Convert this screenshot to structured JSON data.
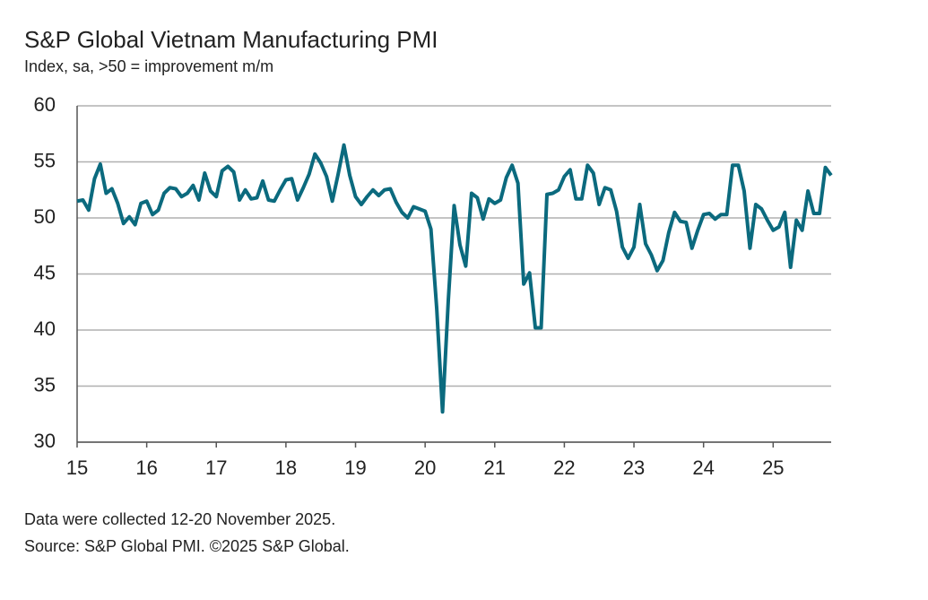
{
  "chart_data": {
    "type": "line",
    "title": "S&P Global Vietnam Manufacturing PMI",
    "subtitle": "Index, sa, >50 = improvement m/m",
    "notes": [
      "Data were collected 12-20 November 2025.",
      "Source: S&P Global PMI. ©2025 S&P Global."
    ],
    "categories": [
      "15",
      null,
      null,
      null,
      null,
      null,
      null,
      null,
      null,
      null,
      null,
      null,
      "16",
      null,
      null,
      null,
      null,
      null,
      null,
      null,
      null,
      null,
      null,
      null,
      "17",
      null,
      null,
      null,
      null,
      null,
      null,
      null,
      null,
      null,
      null,
      null,
      "18",
      null,
      null,
      null,
      null,
      null,
      null,
      null,
      null,
      null,
      null,
      null,
      "19",
      null,
      null,
      null,
      null,
      null,
      null,
      null,
      null,
      null,
      null,
      null,
      "20",
      null,
      null,
      null,
      null,
      null,
      null,
      null,
      null,
      null,
      null,
      null,
      "21",
      null,
      null,
      null,
      null,
      null,
      null,
      null,
      null,
      null,
      null,
      null,
      "22",
      null,
      null,
      null,
      null,
      null,
      null,
      null,
      null,
      null,
      null,
      null,
      "23",
      null,
      null,
      null,
      null,
      null,
      null,
      null,
      null,
      null,
      null,
      null,
      "24",
      null,
      null,
      null,
      null,
      null,
      null,
      null,
      null,
      null,
      null,
      null,
      "25",
      null,
      null,
      null,
      null,
      null,
      null,
      null,
      null,
      null,
      null
    ],
    "values": [
      51.5,
      51.6,
      50.7,
      53.5,
      54.8,
      52.2,
      52.6,
      51.3,
      49.5,
      50.1,
      49.4,
      51.3,
      51.5,
      50.3,
      50.7,
      52.2,
      52.7,
      52.6,
      51.9,
      52.2,
      52.9,
      51.6,
      54.0,
      52.4,
      51.9,
      54.2,
      54.6,
      54.1,
      51.6,
      52.5,
      51.7,
      51.8,
      53.3,
      51.6,
      51.5,
      52.5,
      53.4,
      53.5,
      51.6,
      52.7,
      53.9,
      55.7,
      54.9,
      53.7,
      51.5,
      53.9,
      56.5,
      53.8,
      51.9,
      51.2,
      51.9,
      52.5,
      52.0,
      52.5,
      52.6,
      51.4,
      50.5,
      50.0,
      51.0,
      50.8,
      50.6,
      49.0,
      41.9,
      32.7,
      42.7,
      51.1,
      47.6,
      45.7,
      52.2,
      51.8,
      49.9,
      51.7,
      51.3,
      51.6,
      53.6,
      54.7,
      53.1,
      44.1,
      45.1,
      40.2,
      40.2,
      52.1,
      52.2,
      52.5,
      53.7,
      54.3,
      51.7,
      51.7,
      54.7,
      54.0,
      51.2,
      52.7,
      52.5,
      50.6,
      47.4,
      46.4,
      47.4,
      51.2,
      47.7,
      46.7,
      45.3,
      46.2,
      48.7,
      50.5,
      49.7,
      49.6,
      47.3,
      48.9,
      50.3,
      50.4,
      49.9,
      50.3,
      50.3,
      54.7,
      54.7,
      52.4,
      47.3,
      51.2,
      50.8,
      49.8,
      48.9,
      49.2,
      50.5,
      45.6,
      49.8,
      48.9,
      52.4,
      50.4,
      50.4,
      54.5,
      53.8
    ],
    "color": "#0b6a7e",
    "ylim": [
      30,
      60
    ],
    "yticks": [
      30,
      35,
      40,
      45,
      50,
      55,
      60
    ],
    "grid": true
  }
}
